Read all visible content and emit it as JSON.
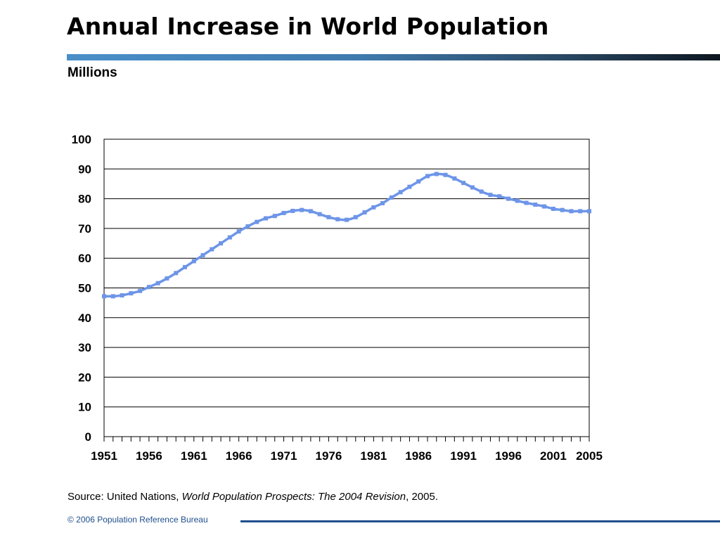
{
  "title": "Annual Increase in World Population",
  "units_label": "Millions",
  "source": {
    "prefix": "Source: United Nations, ",
    "publication": "World Population Prospects: The 2004 Revision",
    "suffix": ", 2005."
  },
  "footer": "© 2006 Population Reference Bureau",
  "colors": {
    "series": "#6d95e8",
    "title_rule_start": "#4a8fc9",
    "footer": "#1f4e8c"
  },
  "chart_data": {
    "type": "line",
    "title": "Annual Increase in World Population",
    "xlabel": "",
    "ylabel": "Millions",
    "ylim": [
      0,
      100
    ],
    "xlim": [
      1951,
      2005
    ],
    "grid": true,
    "x_tick_labels": [
      "1951",
      "1956",
      "1961",
      "1966",
      "1971",
      "1976",
      "1981",
      "1986",
      "1991",
      "1996",
      "2001",
      "2005"
    ],
    "y_tick_labels": [
      "0",
      "10",
      "20",
      "30",
      "40",
      "50",
      "60",
      "70",
      "80",
      "90",
      "100"
    ],
    "x": [
      1951,
      1952,
      1953,
      1954,
      1955,
      1956,
      1957,
      1958,
      1959,
      1960,
      1961,
      1962,
      1963,
      1964,
      1965,
      1966,
      1967,
      1968,
      1969,
      1970,
      1971,
      1972,
      1973,
      1974,
      1975,
      1976,
      1977,
      1978,
      1979,
      1980,
      1981,
      1982,
      1983,
      1984,
      1985,
      1986,
      1987,
      1988,
      1989,
      1990,
      1991,
      1992,
      1993,
      1994,
      1995,
      1996,
      1997,
      1998,
      1999,
      2000,
      2001,
      2002,
      2003,
      2004,
      2005
    ],
    "series": [
      {
        "values": [
          47.2,
          47.2,
          47.5,
          48.2,
          49.0,
          50.3,
          51.6,
          53.2,
          55.0,
          57.0,
          59.0,
          61.0,
          63.0,
          65.0,
          67.0,
          69.0,
          70.7,
          72.2,
          73.4,
          74.2,
          75.2,
          75.9,
          76.2,
          75.8,
          74.8,
          73.8,
          73.1,
          72.9,
          73.8,
          75.4,
          77.1,
          78.5,
          80.4,
          82.2,
          84.0,
          85.8,
          87.6,
          88.3,
          88.0,
          86.8,
          85.3,
          83.8,
          82.4,
          81.3,
          80.8,
          80.0,
          79.3,
          78.6,
          78.0,
          77.4,
          76.6,
          76.2,
          75.8,
          75.8,
          75.8
        ]
      }
    ]
  }
}
